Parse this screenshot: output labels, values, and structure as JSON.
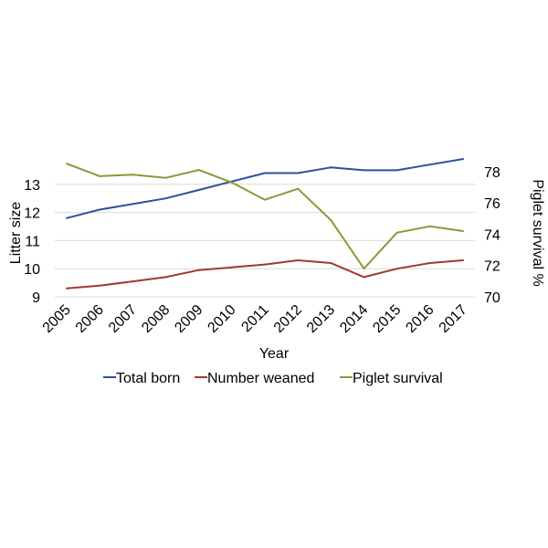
{
  "chart_data": {
    "type": "line",
    "x": [
      "2005",
      "2006",
      "2007",
      "2008",
      "2009",
      "2010",
      "2011",
      "2012",
      "2013",
      "2014",
      "2015",
      "2016",
      "2017"
    ],
    "xlabel": "Year",
    "ylabel_left": "Litter size",
    "ylabel_right": "Piglet survival %",
    "ylim_left": [
      9,
      13.5
    ],
    "yticks_left": [
      9,
      10,
      11,
      12,
      13
    ],
    "ylim_right": [
      70,
      79
    ],
    "yticks_right": [
      70,
      72,
      74,
      76,
      78
    ],
    "grid": true,
    "legend_position": "bottom",
    "series": [
      {
        "name": "Total born",
        "axis": "left",
        "color": "#2f4f9f",
        "values": [
          11.8,
          12.1,
          12.3,
          12.5,
          12.8,
          13.1,
          13.4,
          13.4,
          13.6,
          13.5,
          13.5,
          13.7,
          13.9
        ]
      },
      {
        "name": "Number weaned",
        "axis": "left",
        "color": "#a03a2e",
        "values": [
          9.3,
          9.4,
          9.55,
          9.7,
          9.95,
          10.05,
          10.15,
          10.3,
          10.2,
          9.7,
          10.0,
          10.2,
          10.3
        ]
      },
      {
        "name": "Piglet survival",
        "axis": "right",
        "color": "#8a9a3a",
        "values": [
          78.5,
          77.7,
          77.8,
          77.6,
          78.1,
          77.3,
          76.2,
          76.9,
          74.9,
          71.8,
          74.1,
          74.5,
          74.2
        ]
      }
    ]
  }
}
